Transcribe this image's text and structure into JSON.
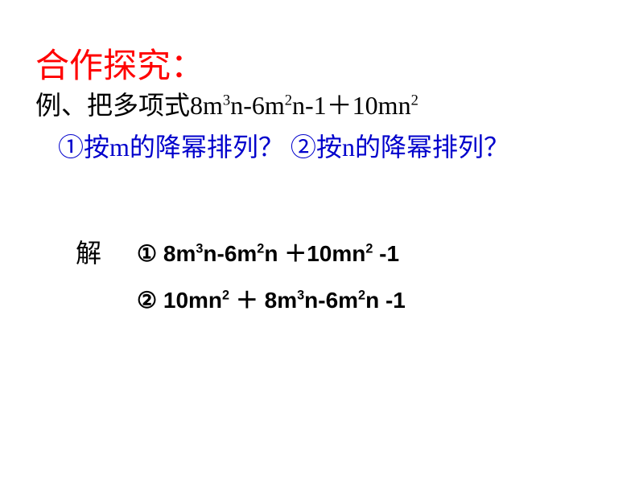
{
  "colors": {
    "title": "#ff0000",
    "body_black": "#000000",
    "question_blue": "#0000cc",
    "background": "#ffffff"
  },
  "fonts": {
    "title_size": 42,
    "body_size": 32,
    "solution_size": 28
  },
  "title": "合作探究：",
  "example": {
    "prefix": "例、把多项式",
    "expr_parts": [
      "8m",
      "3",
      "n-6m",
      "2",
      "n-1＋10mn",
      "2"
    ]
  },
  "question": {
    "q1_mark": "①",
    "q1_text": "按m的降幂排列？",
    "q2_mark": "②",
    "q2_text": "按n的降幂排列？"
  },
  "solution": {
    "label": "解",
    "line1_mark": "①",
    "line1_parts": [
      " 8m",
      "3",
      "n-6m",
      "2",
      "n ＋10mn",
      "2",
      " -1"
    ],
    "line2_mark": "②",
    "line2_parts": [
      " 10mn",
      "2",
      " ＋ 8m",
      "3",
      "n-6m",
      "2",
      "n -1"
    ]
  }
}
